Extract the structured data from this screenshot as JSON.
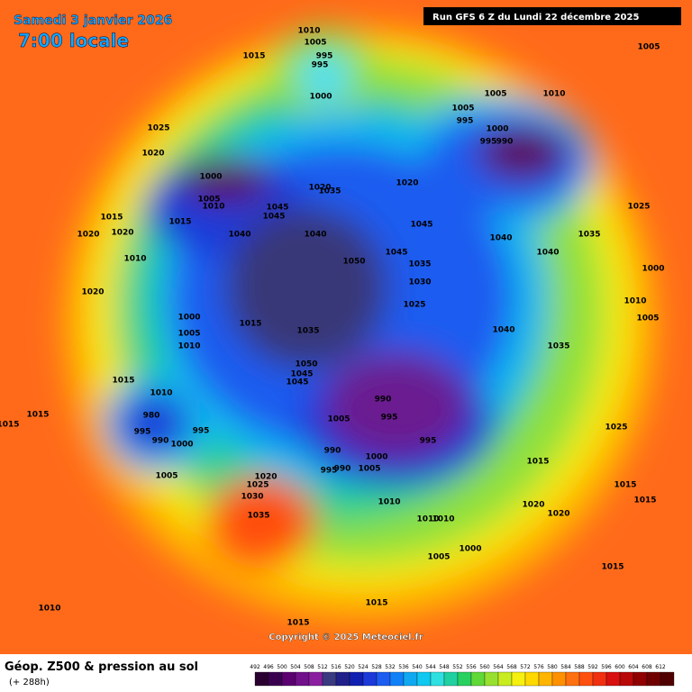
{
  "header": {
    "date": "Samedi 3 janvier 2026",
    "time": "7:00 locale",
    "run": "Run GFS 6 Z du Lundi 22 décembre 2025"
  },
  "footer": {
    "title": "Géop. Z500 & pression au sol",
    "lead": "(+ 288h)",
    "copyright": "Copyright © 2025 Meteociel.fr"
  },
  "isobar_labels": [
    1010,
    1005,
    995,
    995,
    1000,
    1015,
    1005,
    1005,
    1010,
    1005,
    995,
    1000,
    995,
    990,
    1025,
    1020,
    1000,
    1005,
    1010,
    1020,
    1035,
    1020,
    1045,
    1045,
    1015,
    1015,
    1020,
    1020,
    1040,
    1040,
    1045,
    1040,
    1035,
    1025,
    1010,
    1050,
    1045,
    1035,
    1030,
    1040,
    1000,
    1020,
    1025,
    1010,
    1000,
    1015,
    1005,
    1005,
    1035,
    1040,
    1010,
    1035,
    1050,
    1045,
    1045,
    1015,
    1010,
    990,
    995,
    1005,
    1015,
    1015,
    980,
    995,
    990,
    995,
    1000,
    995,
    990,
    1000,
    990,
    995,
    1005,
    1005,
    1020,
    1025,
    1030,
    1010,
    1035,
    1015,
    1025,
    1015,
    1015,
    1020,
    1020,
    1010,
    1010,
    1000,
    1005,
    1015,
    1015,
    1010,
    1015
  ],
  "legend": {
    "ticks": [
      492,
      496,
      500,
      504,
      508,
      512,
      516,
      520,
      524,
      528,
      532,
      536,
      540,
      544,
      548,
      552,
      556,
      560,
      564,
      568,
      572,
      576,
      580,
      584,
      588,
      592,
      596,
      600,
      604,
      608,
      612
    ]
  }
}
